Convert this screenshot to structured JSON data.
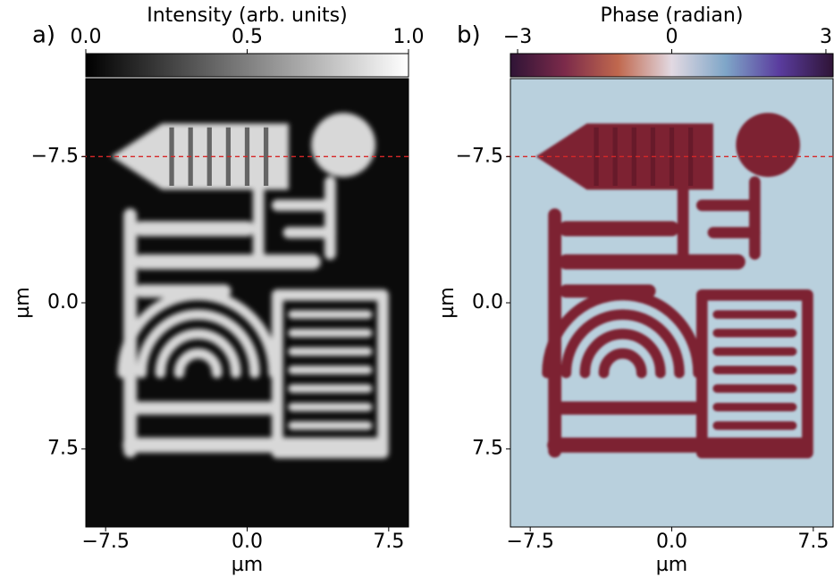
{
  "chart_data": [
    {
      "type": "heatmap",
      "panel_label": "a)",
      "colorbar_label": "Intensity (arb. units)",
      "clim": [
        0,
        1
      ],
      "cticks": [
        {
          "value": 0,
          "label": "0.0"
        },
        {
          "value": 0.5,
          "label": "0.5"
        },
        {
          "value": 1,
          "label": "1.0"
        }
      ],
      "colormap": [
        "#000000",
        "#ffffff"
      ],
      "xlabel": "µm",
      "ylabel": "µm",
      "xlim": [
        -8.55,
        8.55
      ],
      "ylim": [
        11.5,
        -11.5
      ],
      "xticks": [
        {
          "value": -7.5,
          "label": "−7.5"
        },
        {
          "value": 0,
          "label": "0.0"
        },
        {
          "value": 7.5,
          "label": "7.5"
        }
      ],
      "yticks": [
        {
          "value": -7.5,
          "label": "−7.5"
        },
        {
          "value": 0,
          "label": "0.0"
        },
        {
          "value": 7.5,
          "label": "7.5"
        }
      ],
      "reference_line": {
        "y": -7.5,
        "color": "#d62728"
      }
    },
    {
      "type": "heatmap",
      "panel_label": "b)",
      "colorbar_label": "Phase (radian)",
      "clim": [
        -3.14,
        3.14
      ],
      "cticks": [
        {
          "value": -3,
          "label": "−3"
        },
        0,
        3
      ],
      "colormap": [
        "#2f1436",
        "#7b2a4a",
        "#c0684e",
        "#e2d9e2",
        "#7fa6c8",
        "#5a3c9e",
        "#2f1436"
      ],
      "xlabel": "µm",
      "ylabel": "µm",
      "xlim": [
        -8.55,
        8.55
      ],
      "ylim": [
        11.5,
        -11.5
      ],
      "xticks": [
        {
          "value": -7.5,
          "label": "−7.5"
        },
        {
          "value": 0,
          "label": "0.0"
        },
        {
          "value": 7.5,
          "label": "7.5"
        }
      ],
      "yticks": [
        {
          "value": -7.5,
          "label": "−7.5"
        },
        {
          "value": 0,
          "label": "0.0"
        },
        {
          "value": 7.5,
          "label": "7.5"
        }
      ],
      "reference_line": {
        "y": -7.5,
        "color": "#d62728"
      }
    }
  ]
}
